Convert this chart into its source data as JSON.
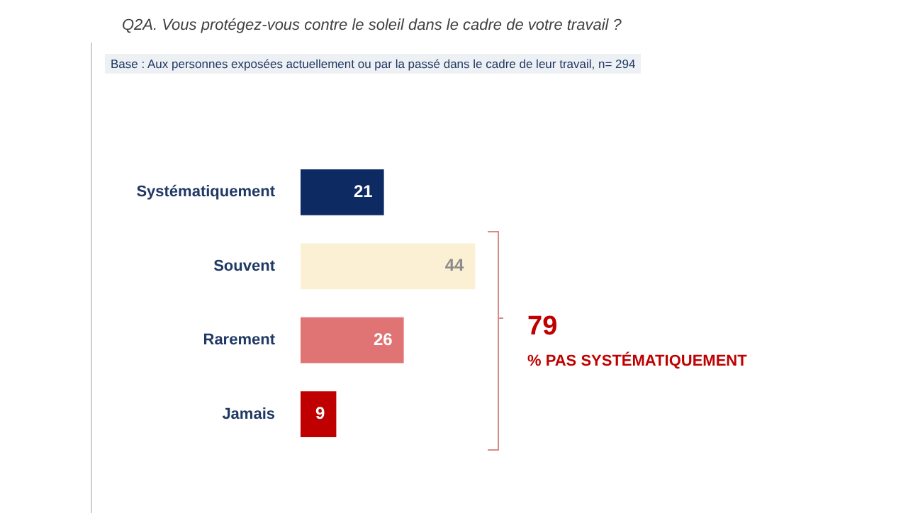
{
  "chart_data": {
    "type": "bar",
    "orientation": "horizontal",
    "title": "Q2A. Vous protégez-vous contre le soleil dans le cadre de votre travail ?",
    "subtitle": "Base : Aux personnes exposées actuellement ou par la passé dans le cadre de leur travail, n= 294",
    "categories": [
      "Systématiquement",
      "Souvent",
      "Rarement",
      "Jamais"
    ],
    "values": [
      21,
      44,
      26,
      9
    ],
    "colors": [
      "#0d2a63",
      "#fbf0d4",
      "#e07474",
      "#c00000"
    ],
    "data_labels": true,
    "tick_labels": "y",
    "legend": false,
    "annotations": [
      "79",
      "% PAS SYSTÉMATIQUEMENT"
    ]
  }
}
